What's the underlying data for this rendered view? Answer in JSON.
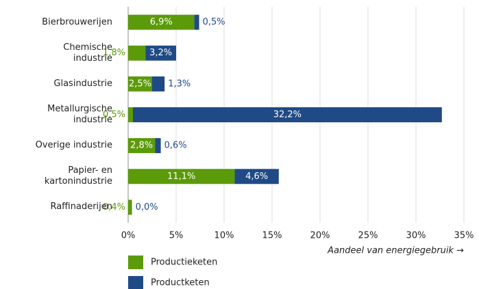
{
  "chart_data": {
    "type": "stacked_barh",
    "categories": [
      "Bierbrouwerijen",
      "Chemische\nindustrie",
      "Glasindustrie",
      "Metallurgische\nindustrie",
      "Overige industrie",
      "Papier- en\nkartonindustrie",
      "Raffinaderijen"
    ],
    "series": [
      {
        "name": "Productieketen",
        "color": "#5b9a09",
        "values": [
          6.9,
          1.8,
          2.5,
          0.5,
          2.8,
          11.1,
          0.4
        ],
        "value_labels": [
          "6,9%",
          "1,8%",
          "2,5%",
          "0,5%",
          "2,8%",
          "11,1%",
          "0,4%"
        ]
      },
      {
        "name": "Productketen",
        "color": "#1f4a85",
        "values": [
          0.5,
          3.2,
          1.3,
          32.2,
          0.6,
          4.6,
          0.0
        ],
        "value_labels": [
          "0,5%",
          "3,2%",
          "1,3%",
          "32,2%",
          "0,6%",
          "4,6%",
          "0,0%"
        ]
      }
    ],
    "xlabel": "Aandeel van energiegebruik →",
    "xlim": [
      0,
      35
    ],
    "xticks": [
      {
        "value": 0,
        "label": "0%"
      },
      {
        "value": 5,
        "label": "5%"
      },
      {
        "value": 10,
        "label": "10%"
      },
      {
        "value": 15,
        "label": "15%"
      },
      {
        "value": 20,
        "label": "20%"
      },
      {
        "value": 25,
        "label": "25%"
      },
      {
        "value": 30,
        "label": "30%"
      },
      {
        "value": 35,
        "label": "35%"
      }
    ],
    "grid": true
  }
}
